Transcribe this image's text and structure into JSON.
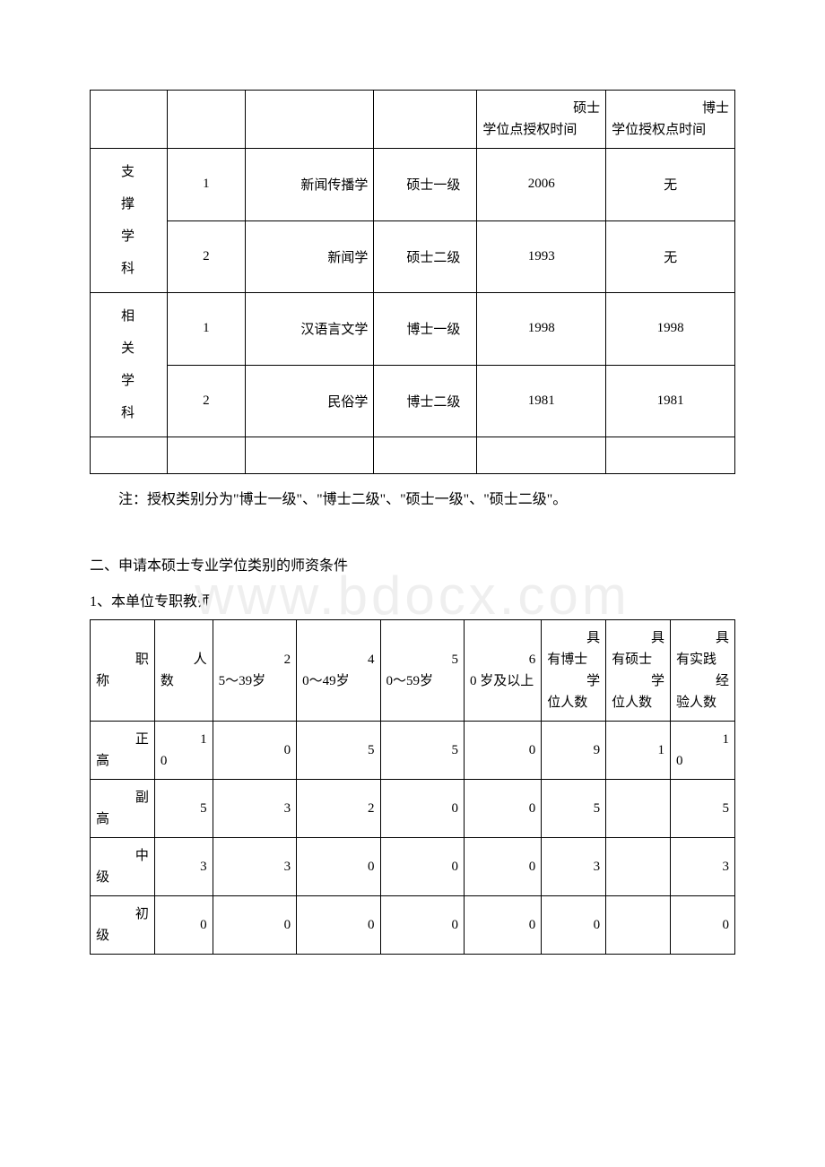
{
  "table1": {
    "header": {
      "col5_line1": "硕士",
      "col5_line2": "学位点授权时间",
      "col6_line1": "博士",
      "col6_line2": "学位授权点时间"
    },
    "group1": {
      "label": "支 撑 学 科"
    },
    "group2": {
      "label": "相 关 学 科"
    },
    "rows": [
      {
        "idx": "1",
        "name": "新闻传播学",
        "level": "硕士一级",
        "m_year": "2006",
        "d_year": "无"
      },
      {
        "idx": "2",
        "name": "新闻学",
        "level": "硕士二级",
        "m_year": "1993",
        "d_year": "无"
      },
      {
        "idx": "1",
        "name": "汉语言文学",
        "level": "博士一级",
        "m_year": "1998",
        "d_year": "1998"
      },
      {
        "idx": "2",
        "name": "民俗学",
        "level": "博士二级",
        "m_year": "1981",
        "d_year": "1981"
      }
    ],
    "note": "注：授权类别分为\"博士一级\"、\"博士二级\"、\"硕士一级\"、\"硕士二级\"。"
  },
  "section2": {
    "title": "二、申请本硕士专业学位类别的师资条件",
    "sub": "1、本单位专职教师"
  },
  "table2": {
    "headers": {
      "c1_l1": "职",
      "c1_l2": "称",
      "c2_l1": "人",
      "c2_l2": "数",
      "c3_l1": "2",
      "c3_l2": "5～39岁",
      "c4_l1": "4",
      "c4_l2": "0～49岁",
      "c5_l1": "5",
      "c5_l2": "0～59岁",
      "c6_l1": "6",
      "c6_l2": "0 岁及以上",
      "c7_l1": "具",
      "c7_l2": "有博士",
      "c7_l3": "学",
      "c7_l4": "位人数",
      "c8_l1": "具",
      "c8_l2": "有硕士",
      "c8_l3": "学",
      "c8_l4": "位人数",
      "c9_l1": "具",
      "c9_l2": "有实践",
      "c9_l3": "经",
      "c9_l4": "验人数"
    },
    "rows": [
      {
        "label_l1": "正",
        "label_l2": "高",
        "count_l1": "1",
        "count_l2": "0",
        "a": "0",
        "b": "5",
        "c": "5",
        "d": "0",
        "phd": "9",
        "ms": "1",
        "exp_l1": "1",
        "exp_l2": "0"
      },
      {
        "label_l1": "副",
        "label_l2": "高",
        "count": "5",
        "a": "3",
        "b": "2",
        "c": "0",
        "d": "0",
        "phd": "5",
        "ms": "",
        "exp": "5"
      },
      {
        "label_l1": "中",
        "label_l2": "级",
        "count": "3",
        "a": "3",
        "b": "0",
        "c": "0",
        "d": "0",
        "phd": "3",
        "ms": "",
        "exp": "3"
      },
      {
        "label_l1": "初",
        "label_l2": "级",
        "count": "0",
        "a": "0",
        "b": "0",
        "c": "0",
        "d": "0",
        "phd": "0",
        "ms": "",
        "exp": "0"
      }
    ]
  },
  "watermark": "www.bdocx.com"
}
